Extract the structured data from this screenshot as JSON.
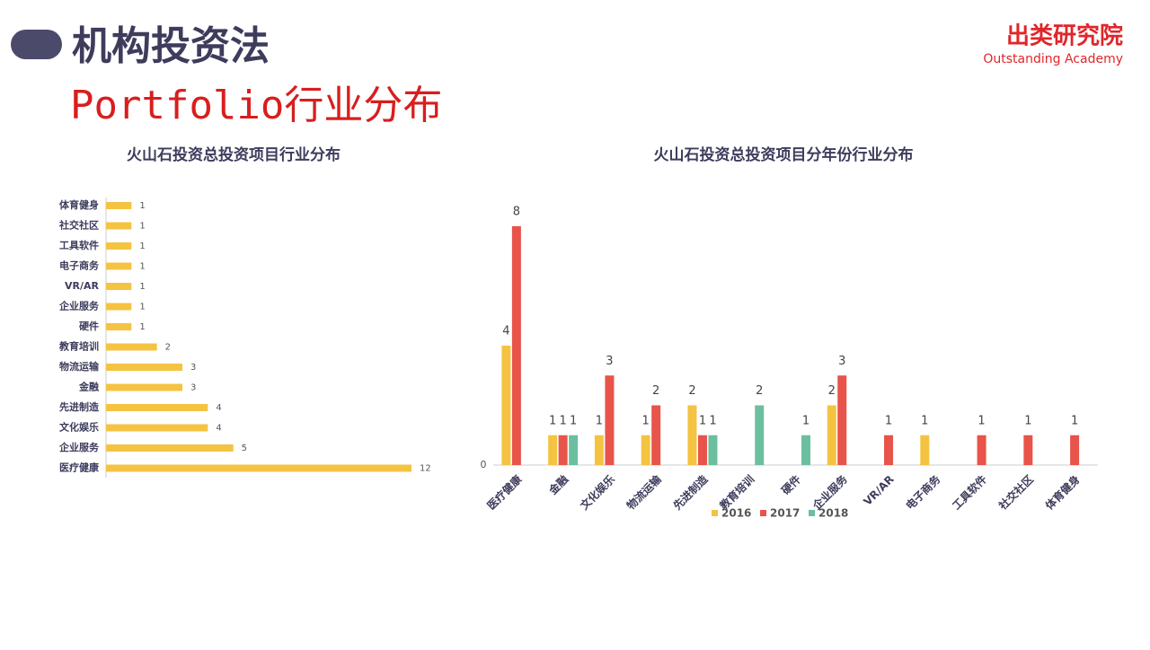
{
  "header": {
    "title": "机构投资法",
    "subtitle": "Portfolio行业分布",
    "logo": "出类研究院",
    "logo_en": "Outstanding Academy"
  },
  "chart_data": [
    {
      "type": "hbar",
      "title": "火山石投资总投资项目行业分布",
      "color": "#f5c342",
      "categories": [
        "体育健身",
        "社交社区",
        "工具软件",
        "电子商务",
        "VR/AR",
        "企业服务",
        "硬件",
        "教育培训",
        "物流运输",
        "金融",
        "先进制造",
        "文化娱乐",
        "企业服务",
        "医疗健康"
      ],
      "values": [
        1,
        1,
        1,
        1,
        1,
        1,
        1,
        2,
        3,
        3,
        4,
        4,
        5,
        12
      ]
    },
    {
      "type": "grouped-bar",
      "title": "火山石投资总投资项目分年份行业分布",
      "categories": [
        "医疗健康",
        "金融",
        "文化娱乐",
        "物流运输",
        "先进制造",
        "教育培训",
        "硬件",
        "企业服务",
        "VR/AR",
        "电子商务",
        "工具软件",
        "社交社区",
        "体育健身"
      ],
      "series": [
        {
          "name": "2016",
          "color": "#f5c342",
          "values": [
            4,
            1,
            1,
            1,
            2,
            null,
            null,
            2,
            null,
            1,
            null,
            null,
            null
          ]
        },
        {
          "name": "2017",
          "color": "#e8534a",
          "values": [
            8,
            1,
            3,
            2,
            1,
            null,
            null,
            3,
            1,
            null,
            1,
            1,
            1
          ]
        },
        {
          "name": "2018",
          "color": "#6bbf9f",
          "values": [
            null,
            1,
            null,
            null,
            1,
            2,
            1,
            null,
            null,
            null,
            null,
            null,
            null
          ]
        }
      ],
      "ylim": [
        0,
        8
      ],
      "yticks": [
        0
      ],
      "legend": "bottom"
    }
  ]
}
